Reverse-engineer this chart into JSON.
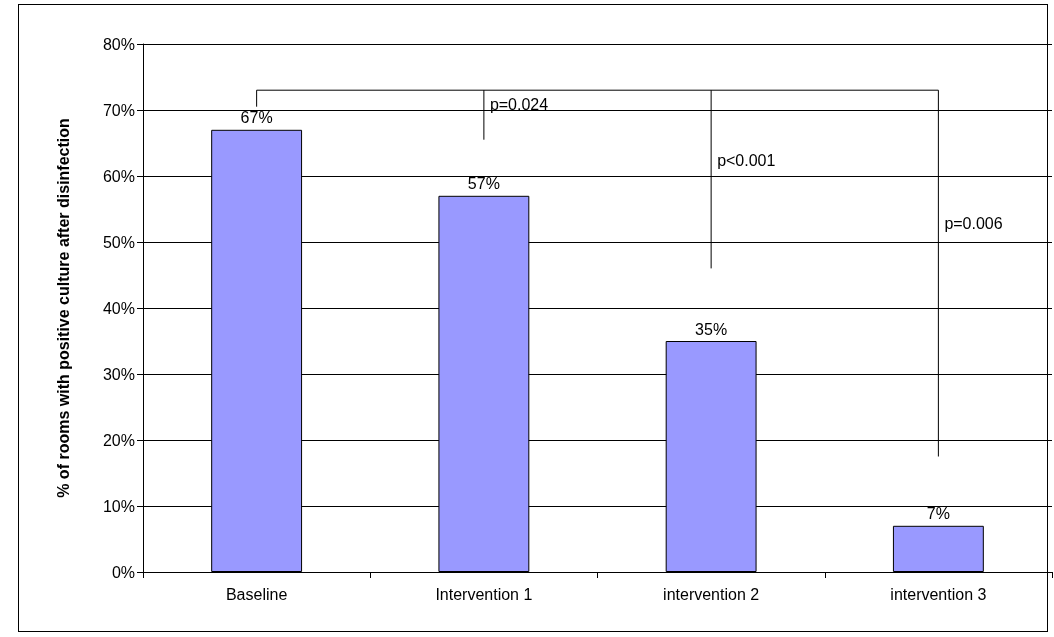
{
  "chart_data": {
    "type": "bar",
    "ylabel": "% of rooms with positive culture after disinfection",
    "categories": [
      "Baseline",
      "Intervention 1",
      "intervention 2",
      "intervention 3"
    ],
    "values": [
      67,
      57,
      35,
      7
    ],
    "value_labels": [
      "67%",
      "57%",
      "35%",
      "7%"
    ],
    "color": "#9999ff",
    "ylim": [
      0,
      80
    ],
    "yticks": [
      {
        "value": 0,
        "label": "0%"
      },
      {
        "value": 10,
        "label": "10%"
      },
      {
        "value": 20,
        "label": "20%"
      },
      {
        "value": 30,
        "label": "30%"
      },
      {
        "value": 40,
        "label": "40%"
      },
      {
        "value": 50,
        "label": "50%"
      },
      {
        "value": 60,
        "label": "60%"
      },
      {
        "value": 70,
        "label": "70%"
      },
      {
        "value": 80,
        "label": "80%"
      }
    ],
    "grid": "y",
    "annotations": [
      "p=0.024",
      "p<0.001",
      "p=0.006"
    ]
  }
}
